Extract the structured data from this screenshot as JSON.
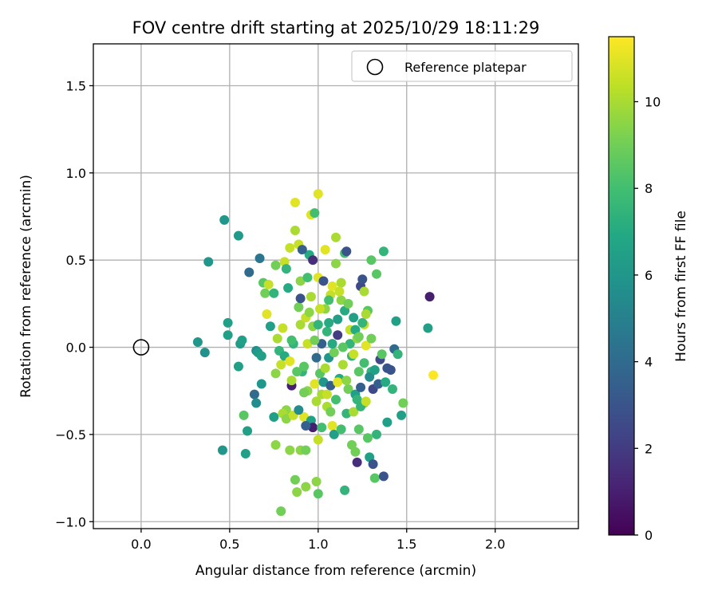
{
  "chart_data": {
    "type": "scatter",
    "title": "FOV centre drift starting at 2025/10/29 18:11:29",
    "xlabel": "Angular distance from reference (arcmin)",
    "ylabel": "Rotation from reference (arcmin)",
    "xlim": [
      -0.27,
      2.47
    ],
    "ylim": [
      -1.04,
      1.74
    ],
    "xticks": [
      0.0,
      0.5,
      1.0,
      1.5,
      2.0
    ],
    "xtick_labels": [
      "0.0",
      "0.5",
      "1.0",
      "1.5",
      "2.0"
    ],
    "yticks": [
      -1.0,
      -0.5,
      0.0,
      0.5,
      1.0,
      1.5
    ],
    "ytick_labels": [
      "−1.0",
      "−0.5",
      "0.0",
      "0.5",
      "1.0",
      "1.5"
    ],
    "grid": true,
    "legend": {
      "position": "top-right",
      "entries": [
        "Reference platepar"
      ]
    },
    "reference_point": {
      "x": 0.0,
      "y": 0.0
    },
    "colorbar": {
      "label": "Hours from first FF file",
      "range": [
        0,
        11.5
      ],
      "ticks": [
        0,
        2,
        4,
        6,
        8,
        10
      ],
      "tick_labels": [
        "0",
        "2",
        "4",
        "6",
        "8",
        "10"
      ],
      "colormap": "viridis"
    },
    "points": [
      {
        "x": 0.47,
        "y": 0.73,
        "c": 6.0
      },
      {
        "x": 0.55,
        "y": 0.64,
        "c": 6.2
      },
      {
        "x": 0.38,
        "y": 0.49,
        "c": 6.0
      },
      {
        "x": 0.67,
        "y": 0.51,
        "c": 4.5
      },
      {
        "x": 0.61,
        "y": 0.43,
        "c": 4.0
      },
      {
        "x": 0.32,
        "y": 0.03,
        "c": 6.0
      },
      {
        "x": 0.36,
        "y": -0.03,
        "c": 5.8
      },
      {
        "x": 0.49,
        "y": 0.14,
        "c": 6.5
      },
      {
        "x": 0.49,
        "y": 0.07,
        "c": 6.5
      },
      {
        "x": 0.56,
        "y": 0.02,
        "c": 6.2
      },
      {
        "x": 0.57,
        "y": 0.04,
        "c": 6.5
      },
      {
        "x": 0.55,
        "y": -0.11,
        "c": 6.5
      },
      {
        "x": 0.58,
        "y": -0.39,
        "c": 8.5
      },
      {
        "x": 0.6,
        "y": -0.48,
        "c": 6.5
      },
      {
        "x": 0.46,
        "y": -0.59,
        "c": 6.0
      },
      {
        "x": 0.59,
        "y": -0.61,
        "c": 6.5
      },
      {
        "x": 0.64,
        "y": -0.27,
        "c": 4.0
      },
      {
        "x": 0.65,
        "y": -0.32,
        "c": 5.5
      },
      {
        "x": 0.65,
        "y": -0.02,
        "c": 5.5
      },
      {
        "x": 0.66,
        "y": -0.03,
        "c": 6.2
      },
      {
        "x": 0.68,
        "y": -0.05,
        "c": 6.5
      },
      {
        "x": 0.68,
        "y": -0.21,
        "c": 6.0
      },
      {
        "x": 0.69,
        "y": 0.37,
        "c": 8.5
      },
      {
        "x": 0.7,
        "y": 0.31,
        "c": 9.0
      },
      {
        "x": 0.71,
        "y": 0.19,
        "c": 11.0
      },
      {
        "x": 0.72,
        "y": 0.36,
        "c": 10.5
      },
      {
        "x": 0.73,
        "y": 0.12,
        "c": 6.5
      },
      {
        "x": 0.75,
        "y": 0.31,
        "c": 7.5
      },
      {
        "x": 0.76,
        "y": 0.47,
        "c": 9.0
      },
      {
        "x": 0.77,
        "y": 0.05,
        "c": 10.0
      },
      {
        "x": 0.76,
        "y": -0.15,
        "c": 9.5
      },
      {
        "x": 0.75,
        "y": -0.4,
        "c": 6.5
      },
      {
        "x": 0.76,
        "y": -0.56,
        "c": 9.5
      },
      {
        "x": 0.79,
        "y": -0.94,
        "c": 9.0
      },
      {
        "x": 0.8,
        "y": 0.11,
        "c": 10.5
      },
      {
        "x": 0.81,
        "y": 0.49,
        "c": 10.5
      },
      {
        "x": 0.82,
        "y": 0.45,
        "c": 7.5
      },
      {
        "x": 0.83,
        "y": 0.34,
        "c": 7.0
      },
      {
        "x": 0.82,
        "y": -0.36,
        "c": 9.5
      },
      {
        "x": 0.84,
        "y": -0.59,
        "c": 9.5
      },
      {
        "x": 0.85,
        "y": -0.22,
        "c": 1.0
      },
      {
        "x": 0.85,
        "y": -0.19,
        "c": 10.0
      },
      {
        "x": 0.84,
        "y": 0.57,
        "c": 10.5
      },
      {
        "x": 0.86,
        "y": 0.02,
        "c": 7.5
      },
      {
        "x": 0.87,
        "y": 0.67,
        "c": 10.0
      },
      {
        "x": 0.87,
        "y": 0.83,
        "c": 11.0
      },
      {
        "x": 0.87,
        "y": -0.76,
        "c": 9.0
      },
      {
        "x": 0.88,
        "y": -0.83,
        "c": 9.5
      },
      {
        "x": 0.89,
        "y": 0.23,
        "c": 9.0
      },
      {
        "x": 0.89,
        "y": 0.59,
        "c": 10.5
      },
      {
        "x": 0.9,
        "y": 0.38,
        "c": 9.5
      },
      {
        "x": 0.9,
        "y": 0.13,
        "c": 10.0
      },
      {
        "x": 0.9,
        "y": -0.59,
        "c": 9.5
      },
      {
        "x": 0.91,
        "y": -0.14,
        "c": 7.5
      },
      {
        "x": 0.92,
        "y": -0.4,
        "c": 11.0
      },
      {
        "x": 0.93,
        "y": -0.59,
        "c": 9.0
      },
      {
        "x": 0.93,
        "y": -0.8,
        "c": 9.5
      },
      {
        "x": 0.93,
        "y": 0.17,
        "c": 10.5
      },
      {
        "x": 0.94,
        "y": 0.02,
        "c": 10.5
      },
      {
        "x": 0.95,
        "y": 0.53,
        "c": 7.0
      },
      {
        "x": 0.96,
        "y": 0.76,
        "c": 11.0
      },
      {
        "x": 0.97,
        "y": 0.12,
        "c": 9.5
      },
      {
        "x": 0.98,
        "y": -0.21,
        "c": 11.0
      },
      {
        "x": 0.98,
        "y": 0.77,
        "c": 8.0
      },
      {
        "x": 0.99,
        "y": -0.77,
        "c": 9.5
      },
      {
        "x": 1.0,
        "y": 0.88,
        "c": 11.0
      },
      {
        "x": 1.0,
        "y": 0.4,
        "c": 11.0
      },
      {
        "x": 1.0,
        "y": -0.53,
        "c": 10.5
      },
      {
        "x": 1.0,
        "y": -0.84,
        "c": 8.5
      },
      {
        "x": 1.02,
        "y": 0.02,
        "c": 3.5
      },
      {
        "x": 1.04,
        "y": 0.56,
        "c": 11.0
      },
      {
        "x": 1.05,
        "y": 0.09,
        "c": 7.5
      },
      {
        "x": 1.05,
        "y": -0.34,
        "c": 10.0
      },
      {
        "x": 1.06,
        "y": -0.06,
        "c": 6.0
      },
      {
        "x": 1.07,
        "y": 0.3,
        "c": 10.5
      },
      {
        "x": 1.08,
        "y": 0.35,
        "c": 11.0
      },
      {
        "x": 1.1,
        "y": 0.63,
        "c": 10.0
      },
      {
        "x": 1.11,
        "y": 0.16,
        "c": 6.5
      },
      {
        "x": 1.13,
        "y": 0.37,
        "c": 10.0
      },
      {
        "x": 1.15,
        "y": 0.54,
        "c": 8.0
      },
      {
        "x": 1.16,
        "y": 0.55,
        "c": 3.0
      },
      {
        "x": 1.15,
        "y": -0.82,
        "c": 7.5
      },
      {
        "x": 1.16,
        "y": -0.38,
        "c": 7.5
      },
      {
        "x": 1.18,
        "y": 0.02,
        "c": 7.5
      },
      {
        "x": 1.2,
        "y": -0.37,
        "c": 10.0
      },
      {
        "x": 1.21,
        "y": -0.6,
        "c": 9.0
      },
      {
        "x": 1.22,
        "y": -0.66,
        "c": 1.5
      },
      {
        "x": 1.23,
        "y": -0.47,
        "c": 8.5
      },
      {
        "x": 1.24,
        "y": 0.35,
        "c": 2.5
      },
      {
        "x": 1.25,
        "y": 0.39,
        "c": 3.0
      },
      {
        "x": 1.26,
        "y": 0.32,
        "c": 10.0
      },
      {
        "x": 1.26,
        "y": 0.13,
        "c": 10.5
      },
      {
        "x": 1.27,
        "y": 0.01,
        "c": 11.0
      },
      {
        "x": 1.28,
        "y": -0.52,
        "c": 8.5
      },
      {
        "x": 1.29,
        "y": -0.63,
        "c": 6.5
      },
      {
        "x": 1.3,
        "y": -0.14,
        "c": 7.5
      },
      {
        "x": 1.3,
        "y": 0.5,
        "c": 8.5
      },
      {
        "x": 1.31,
        "y": -0.67,
        "c": 3.0
      },
      {
        "x": 1.32,
        "y": -0.75,
        "c": 8.5
      },
      {
        "x": 1.33,
        "y": -0.5,
        "c": 7.5
      },
      {
        "x": 1.33,
        "y": 0.42,
        "c": 8.5
      },
      {
        "x": 1.35,
        "y": -0.07,
        "c": 2.5
      },
      {
        "x": 1.37,
        "y": 0.55,
        "c": 7.5
      },
      {
        "x": 1.37,
        "y": -0.74,
        "c": 3.0
      },
      {
        "x": 1.39,
        "y": -0.43,
        "c": 6.5
      },
      {
        "x": 1.39,
        "y": -0.12,
        "c": 3.0
      },
      {
        "x": 1.41,
        "y": -0.13,
        "c": 3.0
      },
      {
        "x": 1.42,
        "y": -0.24,
        "c": 7.5
      },
      {
        "x": 1.43,
        "y": -0.01,
        "c": 4.0
      },
      {
        "x": 1.44,
        "y": 0.15,
        "c": 6.5
      },
      {
        "x": 1.45,
        "y": -0.04,
        "c": 7.5
      },
      {
        "x": 1.47,
        "y": -0.39,
        "c": 6.5
      },
      {
        "x": 1.48,
        "y": -0.32,
        "c": 9.0
      },
      {
        "x": 1.62,
        "y": 0.11,
        "c": 6.5
      },
      {
        "x": 1.63,
        "y": 0.29,
        "c": 1.0
      },
      {
        "x": 1.65,
        "y": -0.16,
        "c": 11.5
      },
      {
        "x": 0.92,
        "y": -0.11,
        "c": 8.5
      },
      {
        "x": 0.94,
        "y": -0.25,
        "c": 9.5
      },
      {
        "x": 0.96,
        "y": -0.42,
        "c": 6.5
      },
      {
        "x": 0.97,
        "y": -0.46,
        "c": 1.0
      },
      {
        "x": 0.99,
        "y": -0.06,
        "c": 4.0
      },
      {
        "x": 1.01,
        "y": -0.15,
        "c": 8.5
      },
      {
        "x": 1.02,
        "y": -0.27,
        "c": 10.0
      },
      {
        "x": 1.03,
        "y": -0.2,
        "c": 6.0
      },
      {
        "x": 1.04,
        "y": 0.22,
        "c": 9.5
      },
      {
        "x": 1.06,
        "y": 0.27,
        "c": 8.0
      },
      {
        "x": 1.07,
        "y": -0.22,
        "c": 3.5
      },
      {
        "x": 1.08,
        "y": -0.45,
        "c": 11.0
      },
      {
        "x": 1.09,
        "y": -0.03,
        "c": 9.0
      },
      {
        "x": 1.1,
        "y": -0.3,
        "c": 8.0
      },
      {
        "x": 1.11,
        "y": 0.07,
        "c": 2.0
      },
      {
        "x": 1.12,
        "y": -0.18,
        "c": 7.0
      },
      {
        "x": 1.13,
        "y": 0.27,
        "c": 9.5
      },
      {
        "x": 1.14,
        "y": -0.1,
        "c": 10.0
      },
      {
        "x": 1.15,
        "y": 0.21,
        "c": 7.0
      },
      {
        "x": 1.17,
        "y": -0.24,
        "c": 9.0
      },
      {
        "x": 1.18,
        "y": 0.1,
        "c": 10.5
      },
      {
        "x": 1.19,
        "y": -0.05,
        "c": 7.5
      },
      {
        "x": 1.2,
        "y": 0.17,
        "c": 6.5
      },
      {
        "x": 1.21,
        "y": -0.27,
        "c": 6.5
      },
      {
        "x": 1.22,
        "y": 0.05,
        "c": 9.5
      },
      {
        "x": 1.23,
        "y": -0.14,
        "c": 8.5
      },
      {
        "x": 1.24,
        "y": -0.23,
        "c": 3.5
      },
      {
        "x": 1.25,
        "y": 0.14,
        "c": 7.5
      },
      {
        "x": 1.26,
        "y": -0.32,
        "c": 9.5
      },
      {
        "x": 1.28,
        "y": 0.21,
        "c": 8.5
      },
      {
        "x": 1.29,
        "y": -0.17,
        "c": 5.5
      },
      {
        "x": 1.3,
        "y": 0.05,
        "c": 9.0
      },
      {
        "x": 1.31,
        "y": -0.24,
        "c": 2.5
      },
      {
        "x": 1.32,
        "y": -0.13,
        "c": 6.5
      },
      {
        "x": 1.34,
        "y": -0.21,
        "c": 3.5
      },
      {
        "x": 1.36,
        "y": -0.04,
        "c": 8.5
      },
      {
        "x": 1.38,
        "y": -0.2,
        "c": 7.0
      },
      {
        "x": 0.78,
        "y": -0.02,
        "c": 7.5
      },
      {
        "x": 0.79,
        "y": -0.1,
        "c": 10.5
      },
      {
        "x": 0.8,
        "y": -0.38,
        "c": 10.0
      },
      {
        "x": 0.81,
        "y": -0.05,
        "c": 7.0
      },
      {
        "x": 0.82,
        "y": -0.41,
        "c": 9.5
      },
      {
        "x": 0.84,
        "y": -0.08,
        "c": 11.0
      },
      {
        "x": 0.85,
        "y": 0.04,
        "c": 8.0
      },
      {
        "x": 0.86,
        "y": -0.39,
        "c": 10.5
      },
      {
        "x": 0.88,
        "y": -0.14,
        "c": 8.5
      },
      {
        "x": 0.89,
        "y": -0.36,
        "c": 5.5
      },
      {
        "x": 0.9,
        "y": 0.28,
        "c": 3.0
      },
      {
        "x": 0.91,
        "y": 0.56,
        "c": 3.5
      },
      {
        "x": 0.92,
        "y": -0.26,
        "c": 9.0
      },
      {
        "x": 0.93,
        "y": -0.45,
        "c": 3.5
      },
      {
        "x": 0.94,
        "y": 0.4,
        "c": 8.0
      },
      {
        "x": 0.95,
        "y": 0.2,
        "c": 9.5
      },
      {
        "x": 0.96,
        "y": 0.29,
        "c": 10.0
      },
      {
        "x": 0.97,
        "y": 0.5,
        "c": 1.5
      },
      {
        "x": 0.98,
        "y": 0.04,
        "c": 9.0
      },
      {
        "x": 0.99,
        "y": -0.31,
        "c": 10.0
      },
      {
        "x": 1.0,
        "y": 0.13,
        "c": 7.5
      },
      {
        "x": 1.01,
        "y": 0.22,
        "c": 10.5
      },
      {
        "x": 1.02,
        "y": -0.46,
        "c": 8.0
      },
      {
        "x": 1.03,
        "y": 0.38,
        "c": 3.0
      },
      {
        "x": 1.04,
        "y": -0.12,
        "c": 10.0
      },
      {
        "x": 1.05,
        "y": -0.27,
        "c": 10.5
      },
      {
        "x": 1.06,
        "y": 0.14,
        "c": 7.0
      },
      {
        "x": 1.07,
        "y": -0.37,
        "c": 9.0
      },
      {
        "x": 1.08,
        "y": 0.02,
        "c": 7.0
      },
      {
        "x": 1.09,
        "y": -0.5,
        "c": 6.5
      },
      {
        "x": 1.1,
        "y": 0.48,
        "c": 9.5
      },
      {
        "x": 1.11,
        "y": -0.2,
        "c": 11.0
      },
      {
        "x": 1.12,
        "y": 0.32,
        "c": 10.5
      },
      {
        "x": 1.13,
        "y": -0.47,
        "c": 8.0
      },
      {
        "x": 1.14,
        "y": 0.0,
        "c": 8.5
      },
      {
        "x": 1.16,
        "y": -0.19,
        "c": 9.5
      },
      {
        "x": 1.17,
        "y": 0.25,
        "c": 9.0
      },
      {
        "x": 1.19,
        "y": -0.56,
        "c": 9.0
      },
      {
        "x": 1.2,
        "y": -0.04,
        "c": 10.5
      },
      {
        "x": 1.21,
        "y": 0.1,
        "c": 7.0
      },
      {
        "x": 1.22,
        "y": -0.3,
        "c": 7.5
      },
      {
        "x": 1.23,
        "y": 0.06,
        "c": 9.0
      },
      {
        "x": 1.24,
        "y": -0.34,
        "c": 7.5
      },
      {
        "x": 1.26,
        "y": -0.09,
        "c": 8.0
      },
      {
        "x": 1.27,
        "y": 0.19,
        "c": 10.0
      },
      {
        "x": 1.27,
        "y": -0.31,
        "c": 10.5
      }
    ]
  }
}
